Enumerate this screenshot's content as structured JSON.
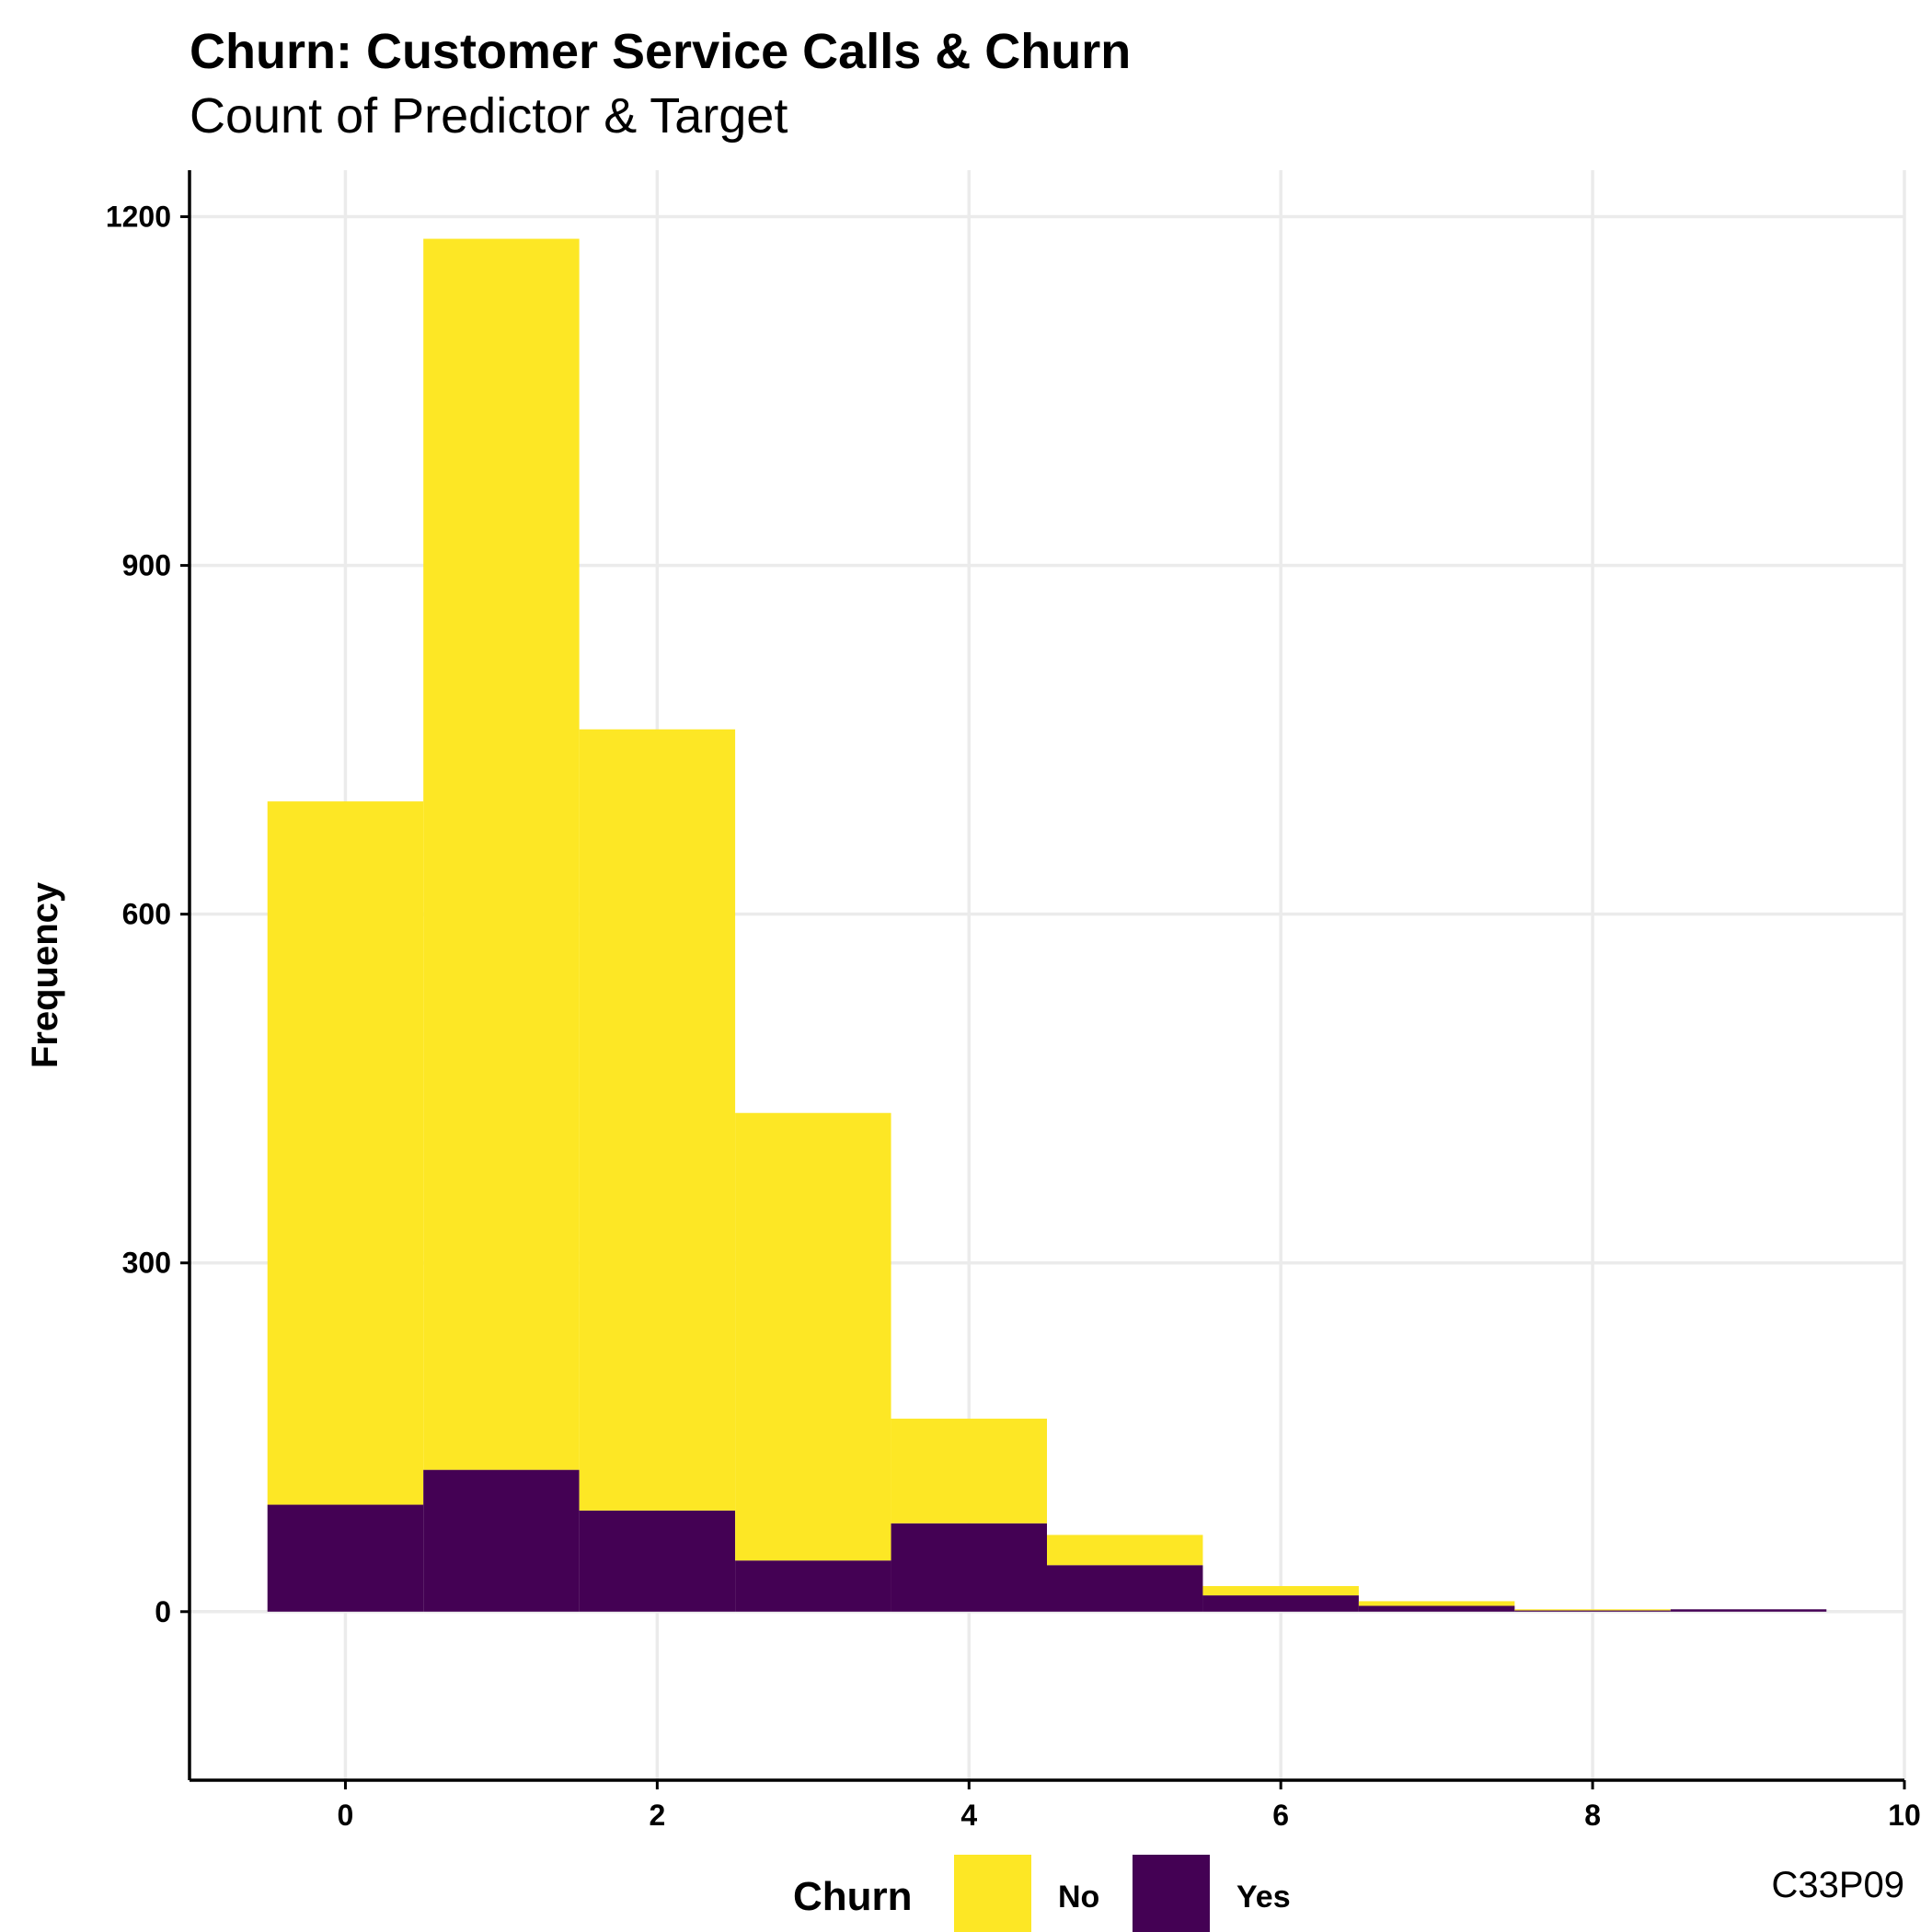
{
  "chart_data": {
    "type": "bar",
    "stacked": true,
    "histogram": true,
    "title": "Churn: Customer Service Calls & Churn",
    "subtitle": "Count of Predictor & Target",
    "ylabel": "Frequency",
    "xlabel": "",
    "caption": "C33P09",
    "x": [
      0,
      1,
      2,
      3,
      4,
      5,
      6,
      7,
      8,
      9
    ],
    "bin_width": 1,
    "xlim": [
      -1,
      10
    ],
    "ylim": [
      -145,
      1240
    ],
    "xticks": [
      0,
      2,
      4,
      6,
      8,
      10
    ],
    "xtick_labels": [
      "0",
      "2",
      "4",
      "6",
      "8",
      "10"
    ],
    "yticks": [
      0,
      300,
      600,
      900,
      1200
    ],
    "ytick_labels": [
      "0",
      "300",
      "600",
      "900",
      "1200"
    ],
    "grid": true,
    "legend": {
      "title": "Churn",
      "position": "bottom"
    },
    "series": [
      {
        "name": "No",
        "color": "#FDE725",
        "values": [
          605,
          1059,
          672,
          385,
          90,
          26,
          8,
          4,
          1,
          0
        ]
      },
      {
        "name": "Yes",
        "color": "#440154",
        "values": [
          92,
          122,
          87,
          44,
          76,
          40,
          14,
          5,
          1,
          2
        ]
      }
    ]
  }
}
